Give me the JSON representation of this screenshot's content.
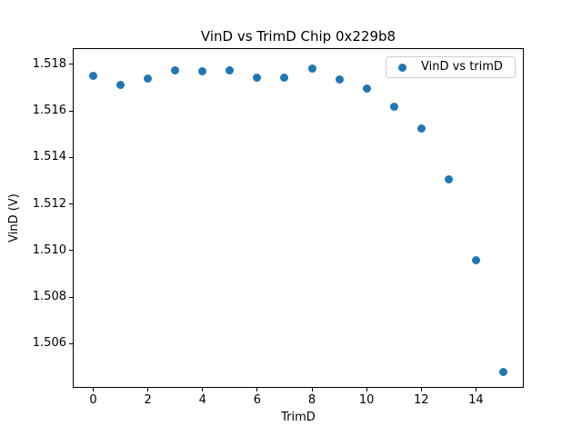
{
  "chart_data": {
    "type": "scatter",
    "title": "VinD vs TrimD Chip 0x229b8",
    "xlabel": "TrimD",
    "ylabel": "VinD (V)",
    "legend_entries": [
      "VinD vs trimD"
    ],
    "legend_position": "upper right",
    "marker_color": "#1f77b4",
    "grid": false,
    "x": [
      0,
      1,
      2,
      3,
      4,
      5,
      6,
      7,
      8,
      9,
      10,
      11,
      12,
      13,
      14,
      15
    ],
    "y": [
      1.5175,
      1.5171,
      1.5174,
      1.51776,
      1.5177,
      1.51775,
      1.51745,
      1.51742,
      1.51784,
      1.51735,
      1.51698,
      1.51618,
      1.51524,
      1.51305,
      1.50957,
      1.50478
    ],
    "xlim": [
      -0.75,
      15.75
    ],
    "ylim": [
      1.5041,
      1.5187
    ],
    "xticks": [
      0,
      2,
      4,
      6,
      8,
      10,
      12,
      14
    ],
    "xticklabels": [
      "0",
      "2",
      "4",
      "6",
      "8",
      "10",
      "12",
      "14"
    ],
    "yticks": [
      1.506,
      1.508,
      1.51,
      1.512,
      1.514,
      1.516,
      1.518
    ],
    "yticklabels": [
      "1.506",
      "1.508",
      "1.510",
      "1.512",
      "1.514",
      "1.516",
      "1.518"
    ]
  }
}
